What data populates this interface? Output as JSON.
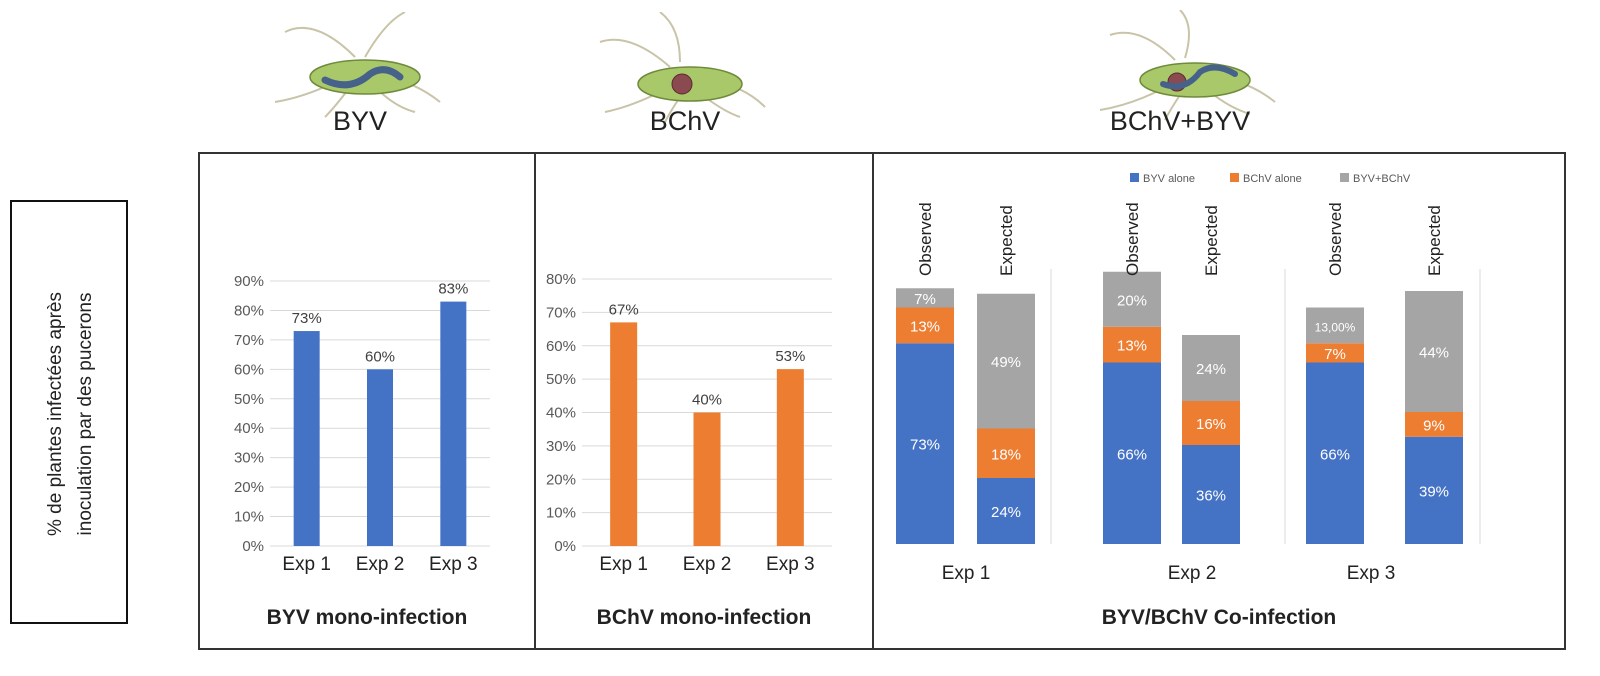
{
  "y_axis_label": "% de plantes infectées après\ninoculation  par des pucerons",
  "virus_labels": [
    "BYV",
    "BChV",
    "BChV+BYV"
  ],
  "colors": {
    "byv": "#4472c4",
    "bchv": "#ed7d31",
    "both": "#a5a5a5"
  },
  "chart_data": [
    {
      "type": "bar",
      "title": "BYV mono-infection",
      "categories": [
        "Exp 1",
        "Exp 2",
        "Exp 3"
      ],
      "values": [
        73,
        60,
        83
      ],
      "data_labels": [
        "73%",
        "60%",
        "83%"
      ],
      "yticks": [
        "0%",
        "10%",
        "20%",
        "30%",
        "40%",
        "50%",
        "60%",
        "70%",
        "80%",
        "90%"
      ],
      "ylim": [
        0,
        90
      ],
      "color": "#4472c4",
      "grid": true
    },
    {
      "type": "bar",
      "title": "BChV mono-infection",
      "categories": [
        "Exp 1",
        "Exp 2",
        "Exp 3"
      ],
      "values": [
        67,
        40,
        53
      ],
      "data_labels": [
        "67%",
        "40%",
        "53%"
      ],
      "yticks": [
        "0%",
        "10%",
        "20%",
        "30%",
        "40%",
        "50%",
        "60%",
        "70%",
        "80%"
      ],
      "ylim": [
        0,
        80
      ],
      "color": "#ed7d31",
      "grid": true
    },
    {
      "type": "bar",
      "stacked": true,
      "title": "BYV/BChV Co-infection",
      "legend": [
        "BYV alone",
        "BChV alone",
        "BYV+BChV"
      ],
      "legend_position": "top-right",
      "groups": [
        "Exp 1",
        "Exp 2",
        "Exp 3"
      ],
      "bars": [
        {
          "group": "Exp 1",
          "label": "Observed",
          "byv": 73,
          "bchv": 13,
          "both": 7,
          "labels": [
            "73%",
            "13%",
            "7%"
          ]
        },
        {
          "group": "Exp 1",
          "label": "Expected",
          "byv": 24,
          "bchv": 18,
          "both": 49,
          "labels": [
            "24%",
            "18%",
            "49%"
          ]
        },
        {
          "group": "Exp 2",
          "label": "Observed",
          "byv": 66,
          "bchv": 13,
          "both": 20,
          "labels": [
            "66%",
            "13%",
            "20%"
          ]
        },
        {
          "group": "Exp 2",
          "label": "Expected",
          "byv": 36,
          "bchv": 16,
          "both": 24,
          "labels": [
            "36%",
            "16%",
            "24%"
          ]
        },
        {
          "group": "Exp 3",
          "label": "Observed",
          "byv": 66,
          "bchv": 7,
          "both": 13,
          "labels": [
            "66%",
            "7%",
            "13,00%"
          ]
        },
        {
          "group": "Exp 3",
          "label": "Expected",
          "byv": 39,
          "bchv": 9,
          "both": 44,
          "labels": [
            "39%",
            "9%",
            "44%"
          ]
        }
      ]
    }
  ]
}
